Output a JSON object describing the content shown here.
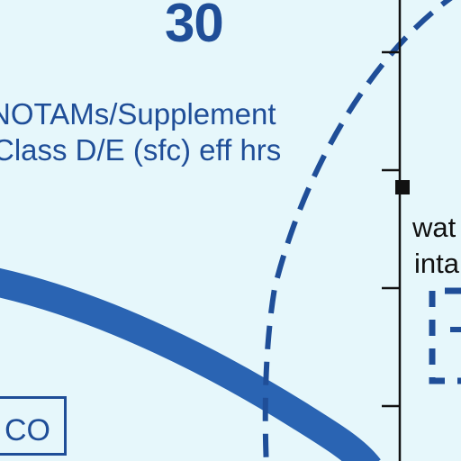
{
  "chart_number": "30",
  "notes": {
    "line1": "NOTAMs/Supplement",
    "line2": "Class D/E (sfc) eff hrs"
  },
  "side_label": {
    "line1": "wat",
    "line2": "inta"
  },
  "box_label": "CO",
  "colors": {
    "background": "#e6f7fb",
    "route": "#2a64b3",
    "dashed_boundary": "#1f4e98",
    "text_blue": "#1f4e98",
    "text_black": "#111111"
  }
}
